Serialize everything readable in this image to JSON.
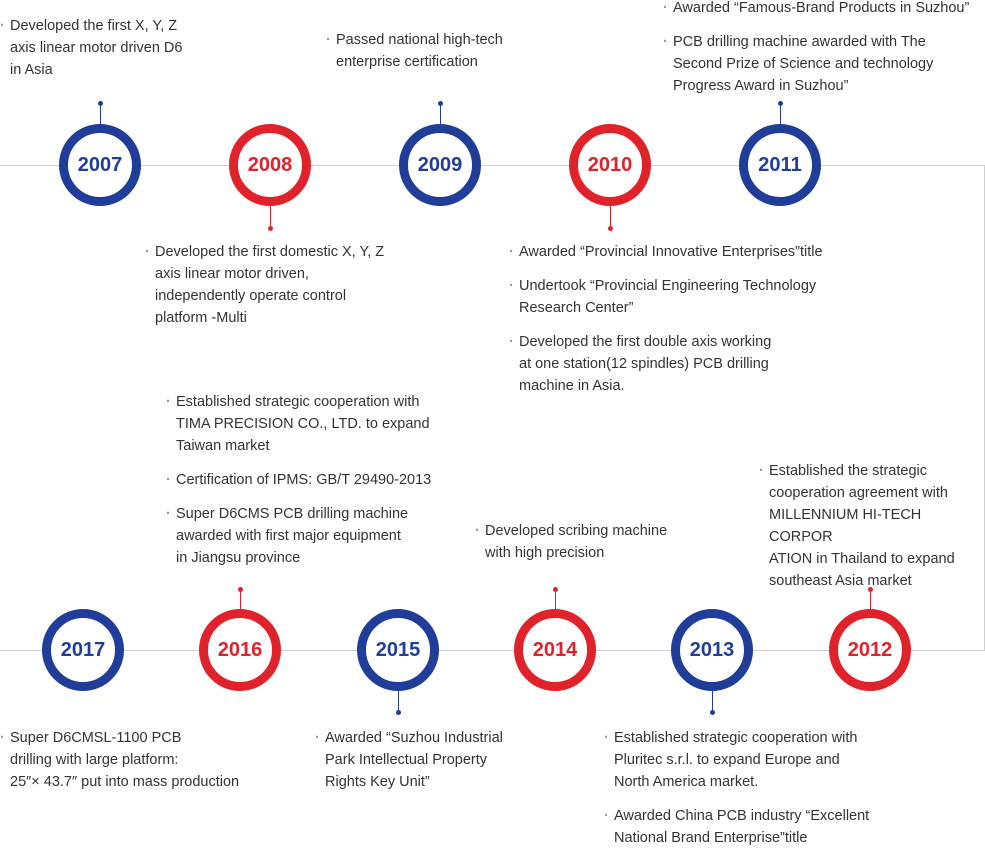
{
  "colors": {
    "blue": "#1f3d99",
    "red": "#e0232b",
    "line": "#cfcfcf"
  },
  "top_row": [
    {
      "year": "2007",
      "color": "blue"
    },
    {
      "year": "2008",
      "color": "red"
    },
    {
      "year": "2009",
      "color": "blue"
    },
    {
      "year": "2010",
      "color": "red"
    },
    {
      "year": "2011",
      "color": "blue"
    }
  ],
  "bottom_row": [
    {
      "year": "2017",
      "color": "blue"
    },
    {
      "year": "2016",
      "color": "red"
    },
    {
      "year": "2015",
      "color": "blue"
    },
    {
      "year": "2014",
      "color": "red"
    },
    {
      "year": "2013",
      "color": "blue"
    },
    {
      "year": "2012",
      "color": "red"
    }
  ],
  "events": {
    "y2007": [
      "Developed the first  X, Y, Z\naxis linear motor driven D6\nin Asia"
    ],
    "y2008": [
      "Developed the first  domestic X, Y, Z\naxis  linear motor driven,\nindependently operate control\nplatform -Multi"
    ],
    "y2009": [
      "Passed national high-tech\nenterprise certification"
    ],
    "y2010": [
      "Awarded “Provincial Innovative Enterprises”title",
      "Undertook “Provincial Engineering Technology\nResearch Center”",
      "Developed the first double axis working\nat one station(12 spindles) PCB drilling\nmachine in Asia."
    ],
    "y2011": [
      "Awarded  “Famous-Brand Products  in Suzhou”",
      "PCB drilling machine awarded with The\nSecond Prize of Science and technology\nProgress Award in Suzhou”"
    ],
    "y2012": [
      "Established the strategic\ncooperation agreement with\nMILLENNIUM HI-TECH CORPOR\nATION in Thailand to expand\nsoutheast Asia market"
    ],
    "y2013": [
      "Established strategic cooperation with\nPluritec s.r.l. to expand Europe and\nNorth America market.",
      "Awarded China PCB industry “Excellent\nNational Brand  Enterprise”title"
    ],
    "y2014": [
      "Developed scribing machine\nwith high precision"
    ],
    "y2015": [
      "Awarded “Suzhou Industrial\nPark Intellectual Property\nRights Key Unit”"
    ],
    "y2016": [
      "Established strategic cooperation with\nTIMA PRECISION CO., LTD. to expand\nTaiwan market",
      "Certification of  IPMS: GB/T 29490-2013",
      "Super D6CMS PCB drilling machine\nawarded with first major equipment\nin Jiangsu province"
    ],
    "y2017": [
      "Super D6CMSL-1100 PCB\ndrilling with large platform:\n25″×  43.7″ put into mass production"
    ]
  }
}
